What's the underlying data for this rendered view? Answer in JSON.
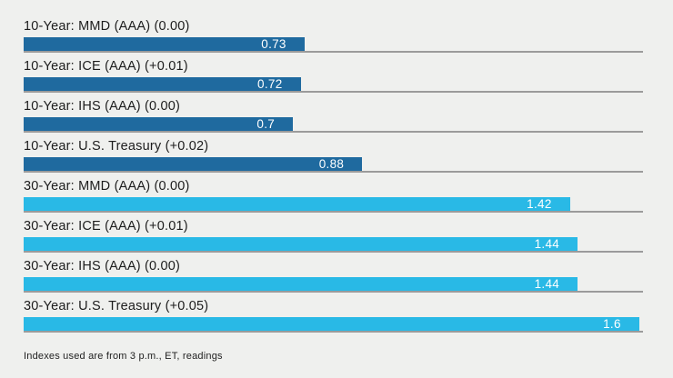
{
  "chart_data": {
    "type": "bar",
    "orientation": "horizontal",
    "title": "",
    "xlabel": "",
    "ylabel": "",
    "xlim": [
      0,
      1.61
    ],
    "grid": false,
    "legend": "none",
    "categories": [
      "10-Year: MMD (AAA) (0.00)",
      "10-Year: ICE (AAA) (+0.01)",
      "10-Year: IHS (AAA) (0.00)",
      "10-Year: U.S. Treasury (+0.02)",
      "30-Year: MMD (AAA) (0.00)",
      "30-Year: ICE (AAA) (+0.01)",
      "30-Year: IHS (AAA) (0.00)",
      "30-Year: U.S. Treasury (+0.05)"
    ],
    "values": [
      0.73,
      0.72,
      0.7,
      0.88,
      1.42,
      1.44,
      1.44,
      1.6
    ],
    "rows": [
      {
        "label": "10-Year: MMD (AAA) (0.00)",
        "value": 0.73,
        "display": "0.73",
        "group": "10-year"
      },
      {
        "label": "10-Year: ICE (AAA) (+0.01)",
        "value": 0.72,
        "display": "0.72",
        "group": "10-year"
      },
      {
        "label": "10-Year: IHS (AAA) (0.00)",
        "value": 0.7,
        "display": "0.7",
        "group": "10-year"
      },
      {
        "label": "10-Year: U.S. Treasury (+0.02)",
        "value": 0.88,
        "display": "0.88",
        "group": "10-year"
      },
      {
        "label": "30-Year: MMD (AAA) (0.00)",
        "value": 1.42,
        "display": "1.42",
        "group": "30-year"
      },
      {
        "label": "30-Year: ICE (AAA) (+0.01)",
        "value": 1.44,
        "display": "1.44",
        "group": "30-year"
      },
      {
        "label": "30-Year: IHS (AAA) (0.00)",
        "value": 1.44,
        "display": "1.44",
        "group": "30-year"
      },
      {
        "label": "30-Year: U.S. Treasury (+0.05)",
        "value": 1.6,
        "display": "1.6",
        "group": "30-year"
      }
    ],
    "footnote": "Indexes used are from 3 p.m., ET, readings"
  },
  "colors": {
    "background": "#eff0ee",
    "bar_10_year": "#1f6a9f",
    "bar_30_year": "#29b9e6",
    "baseline": "#9b9b9b",
    "label_text": "#1d1d1d",
    "value_text": "#ffffff"
  }
}
